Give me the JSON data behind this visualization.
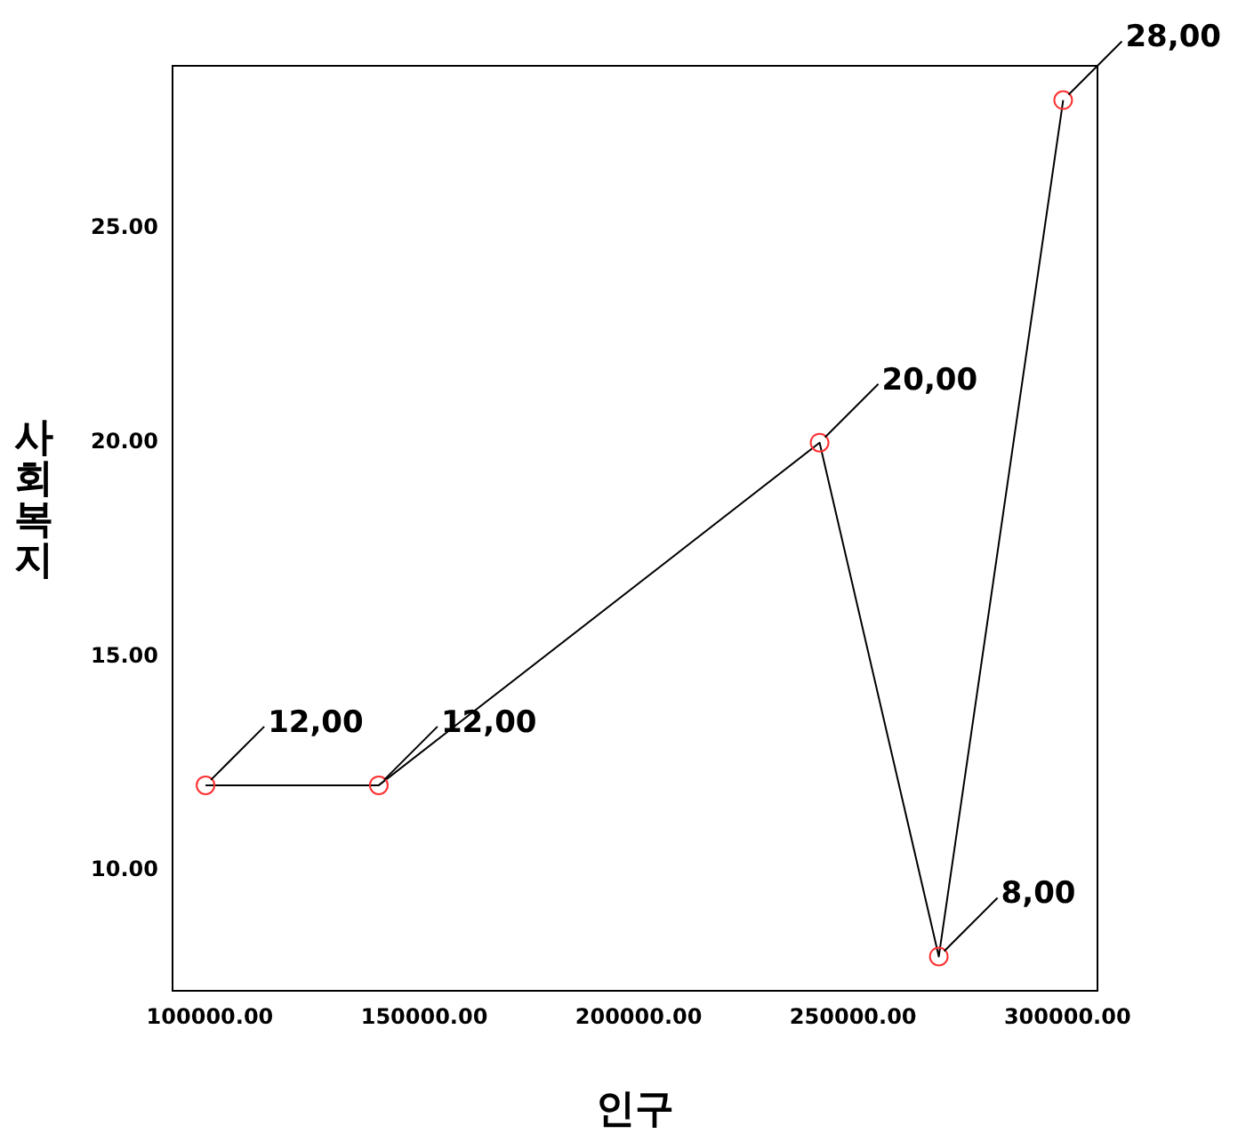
{
  "chart_data": {
    "type": "line",
    "xlabel": "인구",
    "ylabel": "사회복지",
    "x": [
      99000,
      139400,
      242200,
      270000,
      299000
    ],
    "series": [
      {
        "color": "#000000",
        "values": [
          12,
          12,
          20,
          8,
          28
        ],
        "value_labels": [
          "12,00",
          "12,00",
          "20,00",
          "8,00",
          "28,00"
        ]
      }
    ],
    "xlim": [
      91300,
      307000
    ],
    "xticks": [
      {
        "value": 100000,
        "label": "100000.00"
      },
      {
        "value": 150000,
        "label": "150000.00"
      },
      {
        "value": 200000,
        "label": "200000.00"
      },
      {
        "value": 250000,
        "label": "250000.00"
      },
      {
        "value": 300000,
        "label": "300000.00"
      }
    ],
    "ylim": [
      7.2,
      28.8
    ],
    "yticks": [
      {
        "value": 10,
        "label": "10.00"
      },
      {
        "value": 15,
        "label": "15.00"
      },
      {
        "value": 20,
        "label": "20.00"
      },
      {
        "value": 25,
        "label": "25.00"
      }
    ],
    "marker": "circle",
    "line_style": "solid",
    "legend": false
  }
}
